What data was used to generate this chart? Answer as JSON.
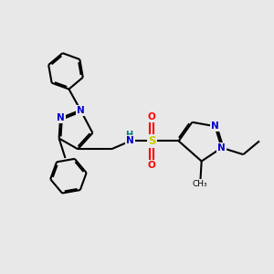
{
  "bg_color": "#e8e8e8",
  "bond_color": "#000000",
  "N_color": "#0000cc",
  "O_color": "#ff0000",
  "S_color": "#cccc00",
  "H_color": "#008080",
  "line_width": 1.5,
  "figsize": [
    3.0,
    3.0
  ],
  "dpi": 100,
  "xlim": [
    0,
    10
  ],
  "ylim": [
    0,
    10
  ]
}
